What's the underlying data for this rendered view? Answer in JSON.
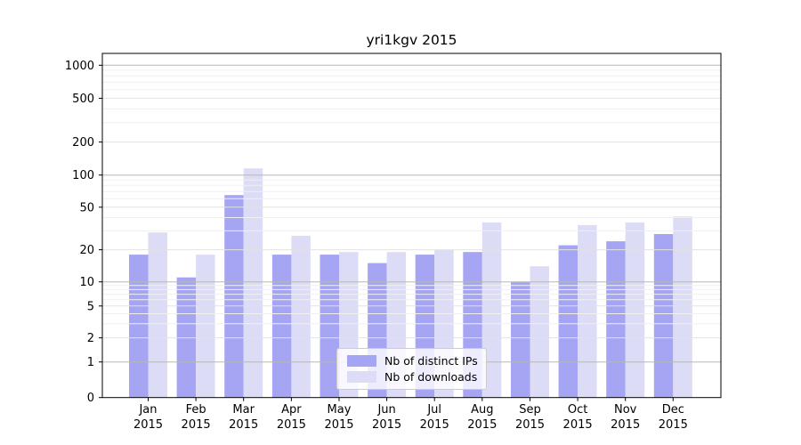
{
  "chart_data": {
    "type": "bar",
    "title": "yri1kgv 2015",
    "x_categories_month": [
      "Jan",
      "Feb",
      "Mar",
      "Apr",
      "May",
      "Jun",
      "Jul",
      "Aug",
      "Sep",
      "Oct",
      "Nov",
      "Dec"
    ],
    "x_categories_year": "2015",
    "series": [
      {
        "name": "Nb of distinct IPs",
        "color": "#a5a5f3",
        "values": [
          18,
          11,
          65,
          18,
          18,
          15,
          18,
          19,
          10,
          22,
          24,
          28
        ]
      },
      {
        "name": "Nb of downloads",
        "color": "#dcdcf7",
        "values": [
          29,
          18,
          115,
          27,
          19,
          19,
          20,
          36,
          14,
          34,
          36,
          41
        ]
      }
    ],
    "y_ticks": [
      0,
      1,
      2,
      5,
      10,
      20,
      50,
      100,
      200,
      500,
      1000
    ],
    "y_scale": "symlog",
    "ylim": [
      0,
      1300
    ],
    "grid": true,
    "legend_position": "lower-center",
    "grid_colors": {
      "major": "#b8b8b8",
      "labeled_minor": "#e2e2e2",
      "minor": "#f0f0f0"
    }
  }
}
